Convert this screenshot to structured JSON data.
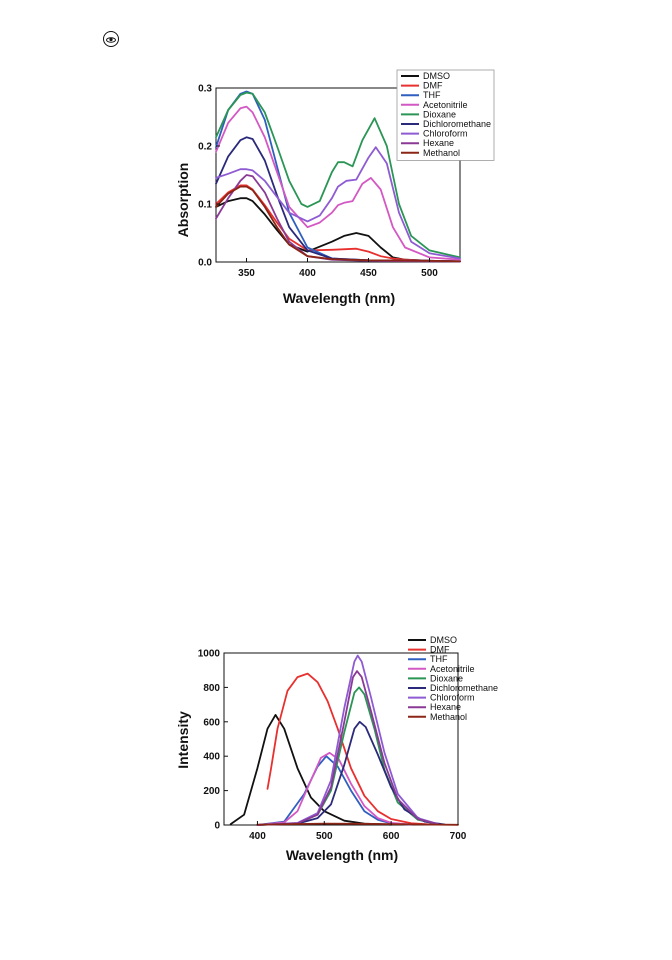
{
  "page": {
    "corner_icon": "cd-eye-icon"
  },
  "chart_data": [
    {
      "type": "line",
      "xlabel": "Wavelength (nm)",
      "ylabel": "Absorption",
      "xlim": [
        325,
        525
      ],
      "ylim": [
        0.0,
        0.3
      ],
      "xticks": [
        350,
        400,
        450,
        500
      ],
      "yticks": [
        0.0,
        0.1,
        0.2,
        0.3
      ],
      "xtick_labels": [
        "350",
        "400",
        "450",
        "500"
      ],
      "ytick_labels": [
        "0.0",
        "0.1",
        "0.2",
        "0.3"
      ],
      "legend_position": "top-right",
      "legend_box": true,
      "series": [
        {
          "name": "DMSO",
          "color": "#111111",
          "x": [
            325,
            335,
            345,
            350,
            355,
            365,
            375,
            385,
            400,
            420,
            430,
            440,
            450,
            460,
            470,
            480,
            500,
            525
          ],
          "y": [
            0.095,
            0.105,
            0.11,
            0.11,
            0.105,
            0.082,
            0.055,
            0.03,
            0.018,
            0.035,
            0.045,
            0.05,
            0.045,
            0.025,
            0.008,
            0.004,
            0.002,
            0.001
          ]
        },
        {
          "name": "DMF",
          "color": "#e8302f",
          "x": [
            325,
            335,
            345,
            350,
            355,
            365,
            375,
            385,
            400,
            420,
            440,
            450,
            460,
            470,
            480,
            500,
            525
          ],
          "y": [
            0.1,
            0.12,
            0.132,
            0.132,
            0.125,
            0.098,
            0.068,
            0.04,
            0.02,
            0.021,
            0.023,
            0.018,
            0.01,
            0.006,
            0.004,
            0.002,
            0.001
          ]
        },
        {
          "name": "THF",
          "color": "#2f5fbf",
          "x": [
            325,
            335,
            345,
            350,
            355,
            365,
            375,
            385,
            400,
            420,
            450,
            500,
            525
          ],
          "y": [
            0.198,
            0.262,
            0.29,
            0.294,
            0.29,
            0.245,
            0.165,
            0.085,
            0.025,
            0.006,
            0.003,
            0.002,
            0.001
          ]
        },
        {
          "name": "Acetonitrile",
          "color": "#d458c4",
          "x": [
            325,
            335,
            345,
            350,
            355,
            365,
            375,
            385,
            400,
            410,
            420,
            425,
            430,
            437,
            445,
            452,
            460,
            470,
            480,
            500,
            525
          ],
          "y": [
            0.19,
            0.24,
            0.265,
            0.268,
            0.258,
            0.215,
            0.155,
            0.095,
            0.06,
            0.068,
            0.085,
            0.098,
            0.102,
            0.105,
            0.135,
            0.145,
            0.125,
            0.06,
            0.025,
            0.008,
            0.004
          ]
        },
        {
          "name": "Dioxane",
          "color": "#2a9555",
          "x": [
            325,
            335,
            345,
            350,
            355,
            365,
            375,
            385,
            395,
            400,
            410,
            420,
            425,
            430,
            437,
            445,
            455,
            465,
            475,
            485,
            500,
            525
          ],
          "y": [
            0.215,
            0.262,
            0.288,
            0.292,
            0.29,
            0.258,
            0.2,
            0.14,
            0.1,
            0.095,
            0.105,
            0.155,
            0.172,
            0.172,
            0.165,
            0.21,
            0.248,
            0.2,
            0.1,
            0.045,
            0.02,
            0.008
          ]
        },
        {
          "name": "Dichloromethane",
          "color": "#2b2a7a",
          "x": [
            325,
            335,
            345,
            350,
            355,
            365,
            375,
            385,
            400,
            420,
            450,
            500,
            525
          ],
          "y": [
            0.135,
            0.182,
            0.21,
            0.215,
            0.212,
            0.175,
            0.115,
            0.06,
            0.02,
            0.006,
            0.003,
            0.002,
            0.001
          ]
        },
        {
          "name": "Chloroform",
          "color": "#8e5bd3",
          "x": [
            325,
            335,
            345,
            350,
            355,
            365,
            375,
            385,
            400,
            410,
            420,
            425,
            432,
            440,
            450,
            456,
            465,
            475,
            485,
            500,
            525
          ],
          "y": [
            0.145,
            0.152,
            0.16,
            0.16,
            0.158,
            0.14,
            0.112,
            0.085,
            0.07,
            0.08,
            0.11,
            0.13,
            0.14,
            0.142,
            0.18,
            0.198,
            0.17,
            0.085,
            0.035,
            0.015,
            0.006
          ]
        },
        {
          "name": "Hexane",
          "color": "#8a3a95",
          "x": [
            325,
            335,
            345,
            350,
            355,
            365,
            375,
            385,
            400,
            420,
            450,
            500,
            525
          ],
          "y": [
            0.075,
            0.11,
            0.14,
            0.15,
            0.148,
            0.12,
            0.075,
            0.035,
            0.01,
            0.004,
            0.002,
            0.001,
            0.001
          ]
        },
        {
          "name": "Methanol",
          "color": "#8b2515",
          "x": [
            325,
            335,
            345,
            350,
            355,
            365,
            375,
            385,
            400,
            420,
            450,
            500,
            525
          ],
          "y": [
            0.095,
            0.118,
            0.13,
            0.13,
            0.124,
            0.095,
            0.06,
            0.03,
            0.01,
            0.005,
            0.003,
            0.002,
            0.001
          ]
        }
      ]
    },
    {
      "type": "line",
      "xlabel": "Wavelength (nm)",
      "ylabel": "Intensity",
      "xlim": [
        350,
        700
      ],
      "ylim": [
        0,
        1000
      ],
      "xticks": [
        400,
        500,
        600,
        700
      ],
      "yticks": [
        0,
        200,
        400,
        600,
        800,
        1000
      ],
      "xtick_labels": [
        "400",
        "500",
        "600",
        "700"
      ],
      "ytick_labels": [
        "0",
        "200",
        "400",
        "600",
        "800",
        "1000"
      ],
      "legend_position": "top-right",
      "legend_box": false,
      "series": [
        {
          "name": "DMSO",
          "color": "#111111",
          "x": [
            360,
            380,
            400,
            415,
            427,
            440,
            460,
            480,
            500,
            530,
            560,
            600
          ],
          "y": [
            5,
            60,
            330,
            560,
            640,
            560,
            330,
            160,
            80,
            25,
            8,
            2
          ]
        },
        {
          "name": "DMF",
          "color": "#e8302f",
          "x": [
            415,
            420,
            430,
            445,
            460,
            475,
            490,
            505,
            520,
            540,
            560,
            580,
            600,
            630,
            660
          ],
          "y": [
            210,
            320,
            560,
            780,
            860,
            880,
            830,
            720,
            560,
            330,
            170,
            80,
            35,
            10,
            3
          ]
        },
        {
          "name": "THF",
          "color": "#2f5fbf",
          "x": [
            400,
            440,
            470,
            490,
            503,
            520,
            540,
            560,
            580,
            600,
            630
          ],
          "y": [
            0,
            20,
            180,
            340,
            400,
            340,
            200,
            80,
            30,
            10,
            2
          ]
        },
        {
          "name": "Acetonitrile",
          "color": "#d458c4",
          "x": [
            400,
            440,
            460,
            480,
            495,
            508,
            522,
            540,
            560,
            580,
            600,
            630
          ],
          "y": [
            0,
            15,
            80,
            260,
            390,
            420,
            380,
            240,
            110,
            40,
            12,
            3
          ]
        },
        {
          "name": "Dioxane",
          "color": "#2a9555",
          "x": [
            400,
            460,
            490,
            510,
            530,
            545,
            552,
            560,
            575,
            590,
            610,
            640,
            670
          ],
          "y": [
            0,
            10,
            60,
            200,
            540,
            770,
            800,
            760,
            560,
            320,
            130,
            30,
            5
          ]
        },
        {
          "name": "Dichloromethane",
          "color": "#2b2a7a",
          "x": [
            400,
            460,
            490,
            510,
            530,
            545,
            553,
            562,
            580,
            600,
            620,
            650,
            680
          ],
          "y": [
            0,
            8,
            40,
            120,
            350,
            560,
            600,
            570,
            410,
            220,
            90,
            20,
            3
          ]
        },
        {
          "name": "Chloroform",
          "color": "#8e5bd3",
          "x": [
            400,
            460,
            490,
            510,
            530,
            545,
            550,
            556,
            570,
            590,
            610,
            640,
            670
          ],
          "y": [
            0,
            12,
            70,
            260,
            680,
            950,
            985,
            950,
            740,
            420,
            180,
            40,
            6
          ]
        },
        {
          "name": "Hexane",
          "color": "#8a3a95",
          "x": [
            400,
            460,
            490,
            510,
            530,
            543,
            549,
            556,
            570,
            590,
            610,
            640,
            670
          ],
          "y": [
            0,
            10,
            60,
            220,
            600,
            860,
            895,
            860,
            660,
            360,
            150,
            35,
            5
          ]
        },
        {
          "name": "Methanol",
          "color": "#8b2515",
          "x": [
            400,
            450,
            500,
            550,
            600,
            650,
            700
          ],
          "y": [
            2,
            5,
            8,
            7,
            5,
            3,
            1
          ]
        }
      ]
    }
  ]
}
